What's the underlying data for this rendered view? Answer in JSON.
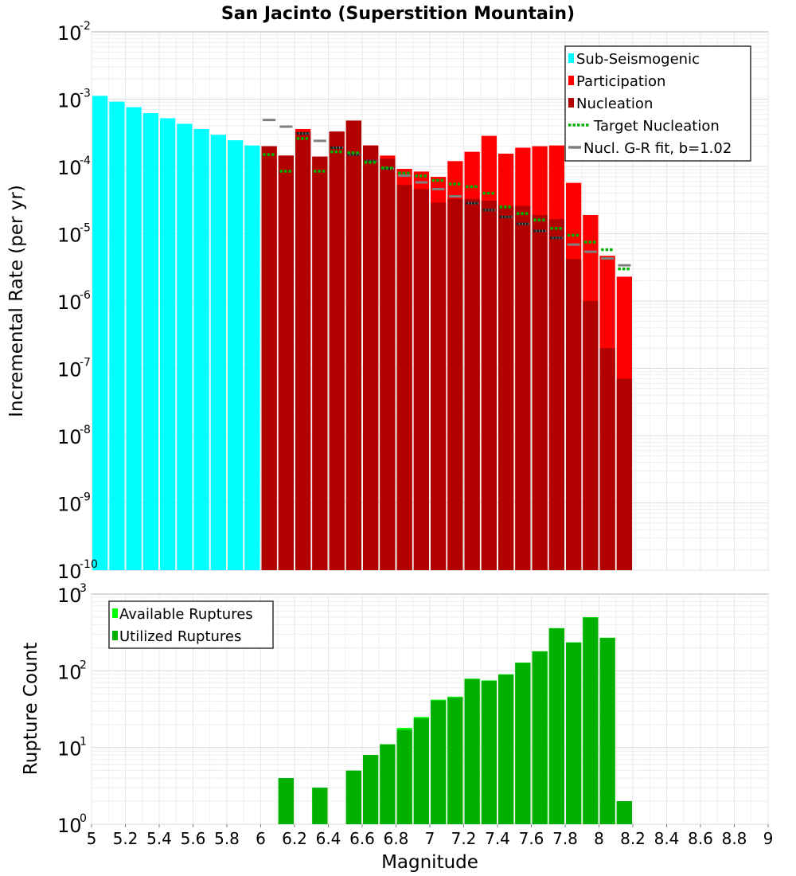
{
  "chart_data": [
    {
      "type": "bar",
      "title": "San Jacinto (Superstition Mountain)",
      "xlabel": "",
      "ylabel": "Incremental Rate (per yr)",
      "yscale": "log",
      "xlim": [
        5,
        9
      ],
      "ylim_exponents": [
        -10,
        -2
      ],
      "bin_width": 0.1,
      "legend_position": "top-right",
      "legend": [
        "Sub-Seismogenic",
        "Participation",
        "Nucleation",
        "Target Nucleation",
        "Nucl. G-R fit, b=1.02"
      ],
      "colors": {
        "Sub-Seismogenic": "#00ffff",
        "Participation": "#ff0000",
        "Nucleation": "#b00000",
        "Target Nucleation": "#00b000",
        "Nucl. G-R fit": "#808080"
      },
      "series": [
        {
          "name": "Sub-Seismogenic",
          "x": [
            5.05,
            5.15,
            5.25,
            5.35,
            5.45,
            5.55,
            5.65,
            5.75,
            5.85,
            5.95
          ],
          "values": [
            0.00112,
            0.00092,
            0.00076,
            0.00062,
            0.00052,
            0.00043,
            0.00036,
            0.000295,
            0.000245,
            0.000205
          ]
        },
        {
          "name": "Participation",
          "x": [
            6.05,
            6.15,
            6.25,
            6.35,
            6.45,
            6.55,
            6.65,
            6.75,
            6.85,
            6.95,
            7.05,
            7.15,
            7.25,
            7.35,
            7.45,
            7.55,
            7.65,
            7.75,
            7.85,
            7.95,
            8.05,
            8.15
          ],
          "values": [
            0.0002,
            0.000145,
            0.00036,
            0.00014,
            0.00033,
            0.00048,
            0.000205,
            0.000145,
            9.2e-05,
            8.4e-05,
            7e-05,
            0.00012,
            0.000165,
            0.000285,
            0.000155,
            0.00019,
            0.0002,
            0.000205,
            5.7e-05,
            1.9e-05,
            4.7e-06,
            2.3e-06
          ]
        },
        {
          "name": "Nucleation",
          "x": [
            6.05,
            6.15,
            6.25,
            6.35,
            6.45,
            6.55,
            6.65,
            6.75,
            6.85,
            6.95,
            7.05,
            7.15,
            7.25,
            7.35,
            7.45,
            7.55,
            7.65,
            7.75,
            7.85,
            7.95,
            8.05,
            8.15
          ],
          "values": [
            0.0002,
            0.000145,
            0.00033,
            0.00014,
            0.00033,
            0.00048,
            0.000205,
            0.00013,
            5.3e-05,
            4.6e-05,
            2.9e-05,
            3.3e-05,
            3.3e-05,
            3.1e-05,
            2.6e-05,
            2.6e-05,
            1.9e-05,
            1.65e-05,
            4.2e-06,
            1e-06,
            2e-07,
            7e-08
          ]
        },
        {
          "name": "Target Nucleation",
          "x": [
            6.05,
            6.15,
            6.25,
            6.35,
            6.45,
            6.55,
            6.65,
            6.75,
            6.85,
            6.95,
            7.05,
            7.15,
            7.25,
            7.35,
            7.45,
            7.55,
            7.65,
            7.75,
            7.85,
            7.95,
            8.05,
            8.15
          ],
          "values": [
            0.00015,
            8.5e-05,
            0.00026,
            8.5e-05,
            0.000165,
            0.00016,
            0.000115,
            9.5e-05,
            8e-05,
            7.2e-05,
            6.2e-05,
            5.5e-05,
            5e-05,
            4e-05,
            2.5e-05,
            2e-05,
            1.6e-05,
            1.2e-05,
            9.5e-06,
            7.5e-06,
            5.8e-06,
            3e-06
          ]
        },
        {
          "name": "Nucl. G-R fit, b=1.02",
          "x": [
            6.05,
            6.15,
            6.25,
            6.35,
            6.45,
            6.55,
            6.65,
            6.75,
            6.85,
            6.95,
            7.05,
            7.15,
            7.25,
            7.35,
            7.45,
            7.55,
            7.65,
            7.75,
            7.85,
            7.95,
            8.05,
            8.15
          ],
          "values": [
            0.00049,
            0.00039,
            0.00031,
            0.00024,
            0.00019,
            0.00015,
            0.00012,
            9.3e-05,
            7.3e-05,
            5.8e-05,
            4.6e-05,
            3.6e-05,
            2.85e-05,
            2.25e-05,
            1.78e-05,
            1.4e-05,
            1.1e-05,
            8.7e-06,
            6.9e-06,
            5.4e-06,
            4.3e-06,
            3.4e-06
          ]
        }
      ]
    },
    {
      "type": "bar",
      "title": "",
      "xlabel": "Magnitude",
      "ylabel": "Rupture Count",
      "yscale": "log",
      "xlim": [
        5,
        9
      ],
      "xticks": [
        "5",
        "5.2",
        "5.4",
        "5.6",
        "5.8",
        "6",
        "6.2",
        "6.4",
        "6.6",
        "6.8",
        "7",
        "7.2",
        "7.4",
        "7.6",
        "7.8",
        "8",
        "8.2",
        "8.4",
        "8.6",
        "8.8",
        "9"
      ],
      "ylim_exponents": [
        0,
        3
      ],
      "bin_width": 0.1,
      "legend_position": "top-left",
      "legend": [
        "Available Ruptures",
        "Utilized Ruptures"
      ],
      "colors": {
        "Available Ruptures": "#00ff00",
        "Utilized Ruptures": "#00b000"
      },
      "series": [
        {
          "name": "Available Ruptures",
          "x": [
            6.15,
            6.35,
            6.45,
            6.55,
            6.65,
            6.75,
            6.85,
            6.95,
            7.05,
            7.15,
            7.25,
            7.35,
            7.45,
            7.55,
            7.65,
            7.75,
            7.85,
            7.95,
            8.05,
            8.15
          ],
          "values": [
            4,
            3,
            1,
            5,
            8,
            11,
            18,
            25,
            42,
            46,
            79,
            75,
            90,
            128,
            180,
            360,
            235,
            500,
            270,
            2
          ]
        },
        {
          "name": "Utilized Ruptures",
          "x": [
            6.15,
            6.35,
            6.45,
            6.55,
            6.65,
            6.75,
            6.85,
            6.95,
            7.05,
            7.15,
            7.25,
            7.35,
            7.45,
            7.55,
            7.65,
            7.75,
            7.85,
            7.95,
            8.05,
            8.15
          ],
          "values": [
            4,
            3,
            1,
            5,
            8,
            11,
            17,
            24,
            41,
            45,
            78,
            74,
            89,
            127,
            179,
            357,
            233,
            495,
            268,
            2
          ]
        }
      ]
    }
  ]
}
